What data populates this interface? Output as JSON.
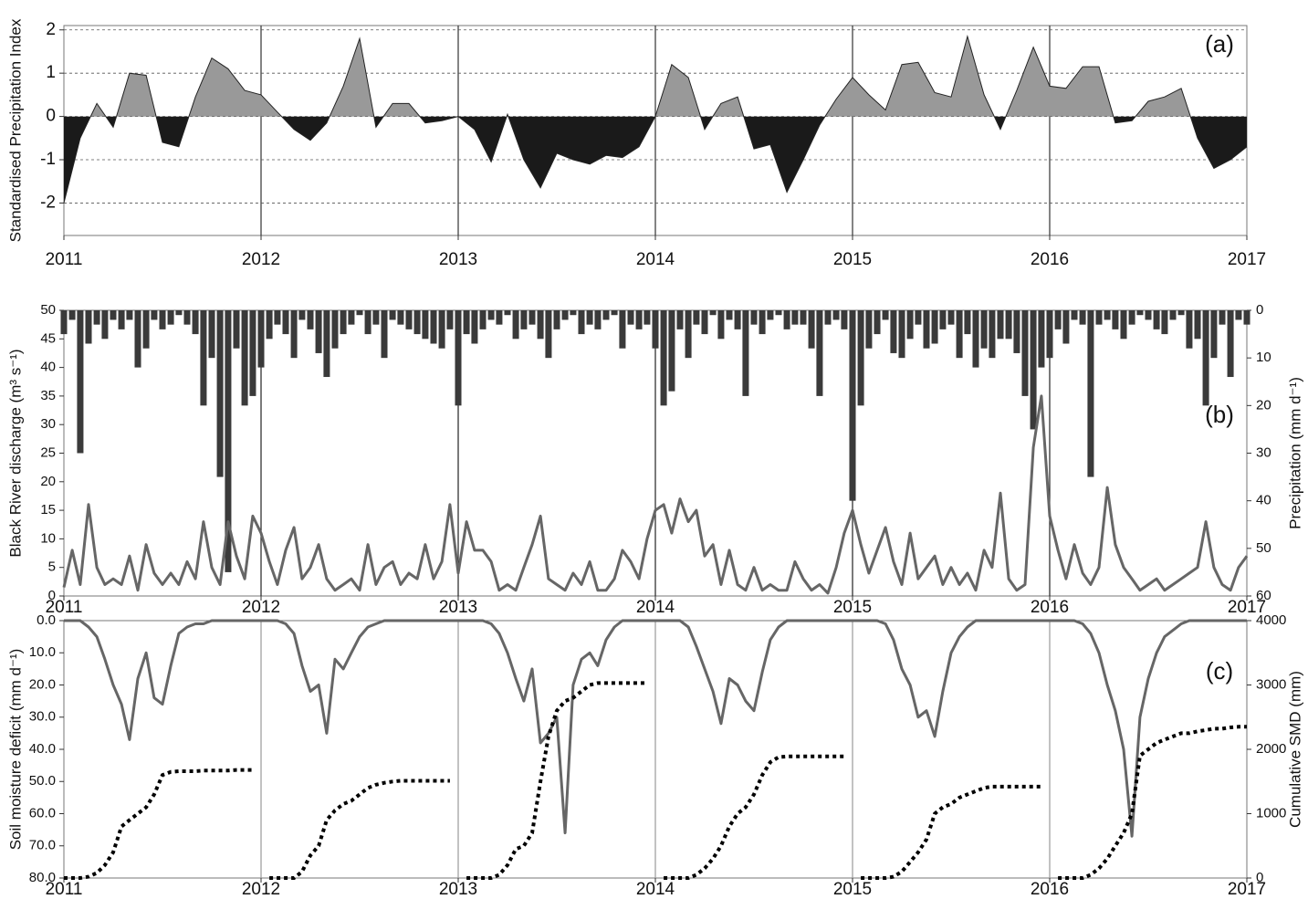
{
  "chart_data": [
    {
      "type": "area",
      "ylabel": "Standardised Precipitation Index",
      "annotation": "(a)",
      "xlim": [
        2011,
        2017
      ],
      "xticks": [
        2011,
        2012,
        2013,
        2014,
        2015,
        2016,
        2017
      ],
      "ylim": [
        -2.75,
        2.1
      ],
      "yticks": [
        -2,
        -1,
        0,
        1,
        2
      ],
      "grid": true,
      "color": "#999999",
      "negative_color": "#1a1a1a",
      "x": [
        2011,
        2011.083,
        2011.167,
        2011.25,
        2011.333,
        2011.417,
        2011.5,
        2011.583,
        2011.667,
        2011.75,
        2011.833,
        2011.917,
        2012,
        2012.083,
        2012.167,
        2012.25,
        2012.333,
        2012.417,
        2012.5,
        2012.583,
        2012.667,
        2012.75,
        2012.833,
        2012.917,
        2013,
        2013.083,
        2013.167,
        2013.25,
        2013.333,
        2013.417,
        2013.5,
        2013.583,
        2013.667,
        2013.75,
        2013.833,
        2013.917,
        2014,
        2014.083,
        2014.167,
        2014.25,
        2014.333,
        2014.417,
        2014.5,
        2014.583,
        2014.667,
        2014.75,
        2014.833,
        2014.917,
        2015,
        2015.083,
        2015.167,
        2015.25,
        2015.333,
        2015.417,
        2015.5,
        2015.583,
        2015.667,
        2015.75,
        2015.833,
        2015.917,
        2016,
        2016.083,
        2016.167,
        2016.25,
        2016.333,
        2016.417,
        2016.5,
        2016.583,
        2016.667,
        2016.75,
        2016.833,
        2016.917,
        2017
      ],
      "values": [
        -2.0,
        -0.5,
        0.3,
        -0.25,
        1.0,
        0.95,
        -0.6,
        -0.7,
        0.45,
        1.35,
        1.1,
        0.6,
        0.5,
        0.1,
        -0.3,
        -0.55,
        -0.15,
        0.7,
        1.8,
        -0.25,
        0.3,
        0.3,
        -0.15,
        -0.1,
        0,
        -0.3,
        -1.05,
        0.05,
        -1.0,
        -1.65,
        -0.85,
        -1.0,
        -1.1,
        -0.9,
        -0.95,
        -0.7,
        0,
        1.2,
        0.9,
        -0.3,
        0.3,
        0.45,
        -0.75,
        -0.65,
        -1.75,
        -1.0,
        -0.2,
        0.4,
        0.9,
        0.5,
        0.15,
        1.2,
        1.25,
        0.55,
        0.45,
        1.85,
        0.5,
        -0.3,
        0.6,
        1.6,
        0.7,
        0.65,
        1.15,
        1.15,
        -0.15,
        -0.1,
        0.35,
        0.45,
        0.65,
        -0.5,
        -1.2,
        -1.0,
        -0.7
      ]
    },
    {
      "type": "combo",
      "ylabel": "Black River discharge (m³ s⁻¹)",
      "y2label": "Precipitation (mm d⁻¹)",
      "annotation": "(b)",
      "xlim": [
        2011,
        2017
      ],
      "xticks": [
        2011,
        2012,
        2013,
        2014,
        2015,
        2016,
        2017
      ],
      "ylim": [
        0,
        50
      ],
      "yticks": [
        0,
        5,
        10,
        15,
        20,
        25,
        30,
        35,
        40,
        45,
        50
      ],
      "y2lim": [
        60,
        0
      ],
      "y2ticks": [
        0,
        10,
        20,
        30,
        40,
        50,
        60
      ],
      "x": [
        2011,
        2011.042,
        2011.083,
        2011.125,
        2011.167,
        2011.208,
        2011.25,
        2011.292,
        2011.333,
        2011.375,
        2011.417,
        2011.458,
        2011.5,
        2011.542,
        2011.583,
        2011.625,
        2011.667,
        2011.708,
        2011.75,
        2011.792,
        2011.833,
        2011.875,
        2011.917,
        2011.958,
        2012,
        2012.042,
        2012.083,
        2012.125,
        2012.167,
        2012.208,
        2012.25,
        2012.292,
        2012.333,
        2012.375,
        2012.417,
        2012.458,
        2012.5,
        2012.542,
        2012.583,
        2012.625,
        2012.667,
        2012.708,
        2012.75,
        2012.792,
        2012.833,
        2012.875,
        2012.917,
        2012.958,
        2013,
        2013.042,
        2013.083,
        2013.125,
        2013.167,
        2013.208,
        2013.25,
        2013.292,
        2013.333,
        2013.375,
        2013.417,
        2013.458,
        2013.5,
        2013.542,
        2013.583,
        2013.625,
        2013.667,
        2013.708,
        2013.75,
        2013.792,
        2013.833,
        2013.875,
        2013.917,
        2013.958,
        2014,
        2014.042,
        2014.083,
        2014.125,
        2014.167,
        2014.208,
        2014.25,
        2014.292,
        2014.333,
        2014.375,
        2014.417,
        2014.458,
        2014.5,
        2014.542,
        2014.583,
        2014.625,
        2014.667,
        2014.708,
        2014.75,
        2014.792,
        2014.833,
        2014.875,
        2014.917,
        2014.958,
        2015,
        2015.042,
        2015.083,
        2015.125,
        2015.167,
        2015.208,
        2015.25,
        2015.292,
        2015.333,
        2015.375,
        2015.417,
        2015.458,
        2015.5,
        2015.542,
        2015.583,
        2015.625,
        2015.667,
        2015.708,
        2015.75,
        2015.792,
        2015.833,
        2015.875,
        2015.917,
        2015.958,
        2016,
        2016.042,
        2016.083,
        2016.125,
        2016.167,
        2016.208,
        2016.25,
        2016.292,
        2016.333,
        2016.375,
        2016.417,
        2016.458,
        2016.5,
        2016.542,
        2016.583,
        2016.625,
        2016.667,
        2016.708,
        2016.75,
        2016.792,
        2016.833,
        2016.875,
        2016.917,
        2016.958,
        2017
      ],
      "series": [
        {
          "type": "line",
          "color": "#666666",
          "values": [
            1.5,
            8,
            2,
            16,
            5,
            2,
            3,
            2,
            7,
            1,
            9,
            4,
            2,
            4,
            2,
            6,
            3,
            13,
            5,
            2,
            13,
            7,
            3,
            14,
            11,
            6,
            2,
            8,
            12,
            3,
            5,
            9,
            3,
            1,
            2,
            3,
            1,
            9,
            2,
            5,
            6,
            2,
            4,
            3,
            9,
            3,
            6,
            16,
            4,
            13,
            8,
            8,
            6,
            1,
            2,
            1,
            5,
            9,
            14,
            3,
            2,
            1,
            4,
            2,
            6,
            1,
            1,
            3,
            8,
            6,
            3,
            10,
            15,
            16,
            11,
            17,
            13,
            15,
            7,
            9,
            2,
            8,
            2,
            1,
            5,
            1,
            2,
            1,
            1,
            6,
            3,
            1,
            2,
            0.5,
            5,
            11,
            15,
            9,
            4,
            8,
            12,
            6,
            2,
            11,
            3,
            5,
            7,
            2,
            5,
            2,
            4,
            1,
            8,
            5,
            18,
            3,
            1,
            2,
            26,
            35,
            14,
            8,
            3,
            9,
            4,
            2,
            5,
            19,
            9,
            5,
            3,
            1,
            2,
            3,
            1,
            2,
            3,
            4,
            5,
            13,
            5,
            2,
            1,
            5,
            7
          ]
        },
        {
          "type": "bar",
          "axis": "y2",
          "color": "#3a3a3a",
          "values": [
            5,
            2,
            30,
            7,
            3,
            6,
            2,
            4,
            2,
            12,
            8,
            2,
            4,
            3,
            1,
            3,
            5,
            20,
            10,
            35,
            55,
            8,
            20,
            18,
            12,
            6,
            3,
            5,
            10,
            2,
            4,
            9,
            14,
            8,
            5,
            3,
            1,
            5,
            3,
            10,
            2,
            3,
            4,
            5,
            6,
            7,
            8,
            4,
            20,
            5,
            7,
            4,
            2,
            3,
            1,
            6,
            4,
            3,
            6,
            10,
            4,
            2,
            1,
            5,
            3,
            4,
            2,
            1,
            8,
            3,
            4,
            3,
            8,
            20,
            17,
            4,
            10,
            3,
            5,
            1,
            6,
            2,
            4,
            18,
            3,
            5,
            2,
            1,
            4,
            3,
            3,
            8,
            18,
            3,
            2,
            4,
            40,
            20,
            8,
            5,
            2,
            9,
            10,
            6,
            3,
            8,
            7,
            4,
            3,
            10,
            5,
            12,
            8,
            10,
            6,
            6,
            9,
            18,
            25,
            12,
            10,
            4,
            7,
            2,
            3,
            35,
            3,
            2,
            4,
            6,
            3,
            1,
            2,
            4,
            5,
            2,
            1,
            8,
            6,
            20,
            10,
            3,
            14,
            2,
            3
          ]
        }
      ]
    },
    {
      "type": "line",
      "ylabel": "Soil moisture deficit (mm d⁻¹)",
      "y2label": "Cumulative SMD (mm)",
      "annotation": "(c)",
      "xlim": [
        2011,
        2017
      ],
      "xticks": [
        2011,
        2012,
        2013,
        2014,
        2015,
        2016,
        2017
      ],
      "ylim": [
        80,
        0
      ],
      "yticks": [
        {
          "value": 0,
          "label": "0.0"
        },
        {
          "value": 10,
          "label": "10.0"
        },
        {
          "value": 20,
          "label": "20.0"
        },
        {
          "value": 30,
          "label": "30.0"
        },
        {
          "value": 40,
          "label": "40.0"
        },
        {
          "value": 50,
          "label": "50.0"
        },
        {
          "value": 60,
          "label": "60.0"
        },
        {
          "value": 70,
          "label": "70.0"
        },
        {
          "value": 80,
          "label": "80.0"
        }
      ],
      "y2lim": [
        0,
        4000
      ],
      "y2ticks": [
        0,
        1000,
        2000,
        3000,
        4000
      ],
      "x": [
        2011,
        2011.042,
        2011.083,
        2011.125,
        2011.167,
        2011.208,
        2011.25,
        2011.292,
        2011.333,
        2011.375,
        2011.417,
        2011.458,
        2011.5,
        2011.542,
        2011.583,
        2011.625,
        2011.667,
        2011.708,
        2011.75,
        2011.792,
        2011.833,
        2011.875,
        2011.917,
        2011.958,
        2012,
        2012.042,
        2012.083,
        2012.125,
        2012.167,
        2012.208,
        2012.25,
        2012.292,
        2012.333,
        2012.375,
        2012.417,
        2012.458,
        2012.5,
        2012.542,
        2012.583,
        2012.625,
        2012.667,
        2012.708,
        2012.75,
        2012.792,
        2012.833,
        2012.875,
        2012.917,
        2012.958,
        2013,
        2013.042,
        2013.083,
        2013.125,
        2013.167,
        2013.208,
        2013.25,
        2013.292,
        2013.333,
        2013.375,
        2013.417,
        2013.458,
        2013.5,
        2013.542,
        2013.583,
        2013.625,
        2013.667,
        2013.708,
        2013.75,
        2013.792,
        2013.833,
        2013.875,
        2013.917,
        2013.958,
        2014,
        2014.042,
        2014.083,
        2014.125,
        2014.167,
        2014.208,
        2014.25,
        2014.292,
        2014.333,
        2014.375,
        2014.417,
        2014.458,
        2014.5,
        2014.542,
        2014.583,
        2014.625,
        2014.667,
        2014.708,
        2014.75,
        2014.792,
        2014.833,
        2014.875,
        2014.917,
        2014.958,
        2015,
        2015.042,
        2015.083,
        2015.125,
        2015.167,
        2015.208,
        2015.25,
        2015.292,
        2015.333,
        2015.375,
        2015.417,
        2015.458,
        2015.5,
        2015.542,
        2015.583,
        2015.625,
        2015.667,
        2015.708,
        2015.75,
        2015.792,
        2015.833,
        2015.875,
        2015.917,
        2015.958,
        2016,
        2016.042,
        2016.083,
        2016.125,
        2016.167,
        2016.208,
        2016.25,
        2016.292,
        2016.333,
        2016.375,
        2016.417,
        2016.458,
        2016.5,
        2016.542,
        2016.583,
        2016.625,
        2016.667,
        2016.708,
        2016.75,
        2016.792,
        2016.833,
        2016.875,
        2016.917,
        2016.958,
        2017
      ],
      "series": [
        {
          "color": "#666666",
          "values": [
            0,
            0,
            0,
            2,
            5,
            12,
            20,
            26,
            37,
            18,
            10,
            24,
            26,
            14,
            4,
            2,
            1,
            1,
            0,
            0,
            0,
            0,
            0,
            0,
            0,
            0,
            0,
            1,
            4,
            14,
            22,
            20,
            35,
            12,
            15,
            10,
            5,
            2,
            1,
            0,
            0,
            0,
            0,
            0,
            0,
            0,
            0,
            0,
            0,
            0,
            0,
            0,
            1,
            4,
            10,
            18,
            25,
            15,
            38,
            35,
            30,
            66,
            20,
            12,
            10,
            14,
            6,
            2,
            0,
            0,
            0,
            0,
            0,
            0,
            0,
            0,
            2,
            8,
            15,
            22,
            32,
            18,
            20,
            25,
            28,
            16,
            6,
            2,
            0,
            0,
            0,
            0,
            0,
            0,
            0,
            0,
            0,
            0,
            0,
            0,
            1,
            6,
            15,
            20,
            30,
            28,
            36,
            22,
            10,
            5,
            2,
            0,
            0,
            0,
            0,
            0,
            0,
            0,
            0,
            0,
            0,
            0,
            0,
            0,
            1,
            4,
            10,
            20,
            28,
            40,
            67,
            30,
            18,
            10,
            5,
            3,
            1,
            0,
            0,
            0,
            0,
            0,
            0,
            0,
            0
          ]
        },
        {
          "axis": "y2",
          "color": "#000000",
          "dash": "dotted",
          "values": [
            0,
            0,
            0,
            20,
            80,
            200,
            400,
            800,
            900,
            1000,
            1100,
            1300,
            1600,
            1650,
            1660,
            1660,
            1660,
            1670,
            1670,
            1670,
            1670,
            1680,
            1680,
            1680,
            null,
            0,
            0,
            0,
            0,
            100,
            350,
            500,
            900,
            1050,
            1150,
            1200,
            1300,
            1400,
            1450,
            1480,
            1500,
            1510,
            1510,
            1510,
            1510,
            1510,
            1510,
            1510,
            null,
            0,
            0,
            0,
            0,
            50,
            200,
            450,
            500,
            700,
            1500,
            2200,
            2600,
            2750,
            2800,
            2900,
            3000,
            3030,
            3030,
            3030,
            3030,
            3030,
            3030,
            3030,
            null,
            0,
            0,
            0,
            0,
            50,
            150,
            300,
            500,
            800,
            1000,
            1100,
            1300,
            1600,
            1800,
            1880,
            1890,
            1890,
            1890,
            1890,
            1890,
            1890,
            1890,
            1890,
            null,
            0,
            0,
            0,
            0,
            20,
            100,
            250,
            400,
            600,
            1000,
            1100,
            1150,
            1250,
            1300,
            1350,
            1400,
            1420,
            1420,
            1420,
            1420,
            1420,
            1420,
            1420,
            null,
            0,
            0,
            0,
            0,
            50,
            150,
            300,
            500,
            700,
            1000,
            1900,
            2000,
            2100,
            2150,
            2200,
            2250,
            2250,
            2280,
            2300,
            2320,
            2320,
            2340,
            2350,
            2350
          ]
        }
      ]
    }
  ]
}
